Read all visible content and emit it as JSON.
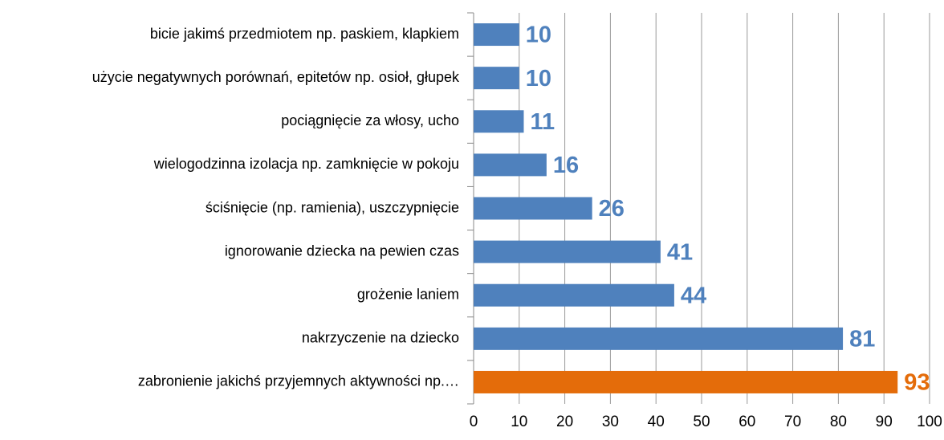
{
  "chart_data": {
    "type": "barh",
    "categories": [
      "bicie jakimś przedmiotem np. paskiem, klapkiem",
      "użycie negatywnych porównań, epitetów np. osioł, głupek",
      "pociągnięcie za włosy, ucho",
      "wielogodzinna izolacja np. zamknięcie w pokoju",
      "ściśnięcie (np. ramienia), uszczypnięcie",
      "ignorowanie dziecka na pewien czas",
      "grożenie laniem",
      "nakrzyczenie na dziecko",
      "zabronienie jakichś przyjemnych aktywności np.…"
    ],
    "values": [
      10,
      10,
      11,
      16,
      26,
      41,
      44,
      81,
      93
    ],
    "colors": [
      "#4f81bd",
      "#4f81bd",
      "#4f81bd",
      "#4f81bd",
      "#4f81bd",
      "#4f81bd",
      "#4f81bd",
      "#4f81bd",
      "#e46c0a"
    ],
    "xlim": [
      0,
      100
    ],
    "xticks": [
      0,
      10,
      20,
      30,
      40,
      50,
      60,
      70,
      80,
      90,
      100
    ],
    "grid": true
  }
}
